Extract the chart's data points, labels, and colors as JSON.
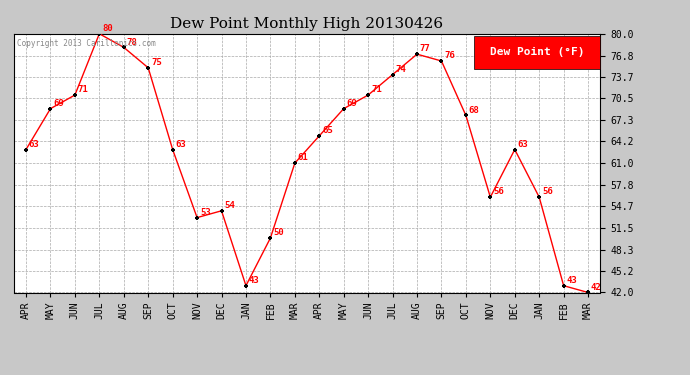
{
  "title": "Dew Point Monthly High 20130426",
  "months": [
    "APR",
    "MAY",
    "JUN",
    "JUL",
    "AUG",
    "SEP",
    "OCT",
    "NOV",
    "DEC",
    "JAN",
    "FEB",
    "MAR",
    "APR",
    "MAY",
    "JUN",
    "JUL",
    "AUG",
    "SEP",
    "OCT",
    "NOV",
    "DEC",
    "JAN",
    "FEB",
    "MAR"
  ],
  "values": [
    63,
    69,
    71,
    80,
    78,
    75,
    63,
    53,
    54,
    43,
    50,
    61,
    65,
    69,
    71,
    74,
    77,
    76,
    68,
    56,
    63,
    56,
    43,
    42
  ],
  "ylim": [
    42.0,
    80.0
  ],
  "yticks": [
    42.0,
    45.2,
    48.3,
    51.5,
    54.7,
    57.8,
    61.0,
    64.2,
    67.3,
    70.5,
    73.7,
    76.8,
    80.0
  ],
  "ytick_labels": [
    "42.0",
    "45.2",
    "48.3",
    "51.5",
    "54.7",
    "57.8",
    "61.0",
    "64.2",
    "67.3",
    "70.5",
    "73.7",
    "76.8",
    "80.0"
  ],
  "line_color": "red",
  "marker_color": "black",
  "label_color": "red",
  "bg_color": "#c8c8c8",
  "plot_bg_color": "#ffffff",
  "grid_color": "#aaaaaa",
  "legend_text": "Dew Point (°F)",
  "legend_bg": "red",
  "legend_fg": "white",
  "copyright_text": "Copyright 2013 Carillonics.com",
  "copyright_color": "#888888",
  "font_size_labels": 6.5,
  "font_size_title": 11,
  "font_size_ticks": 7,
  "legend_fontsize": 8
}
